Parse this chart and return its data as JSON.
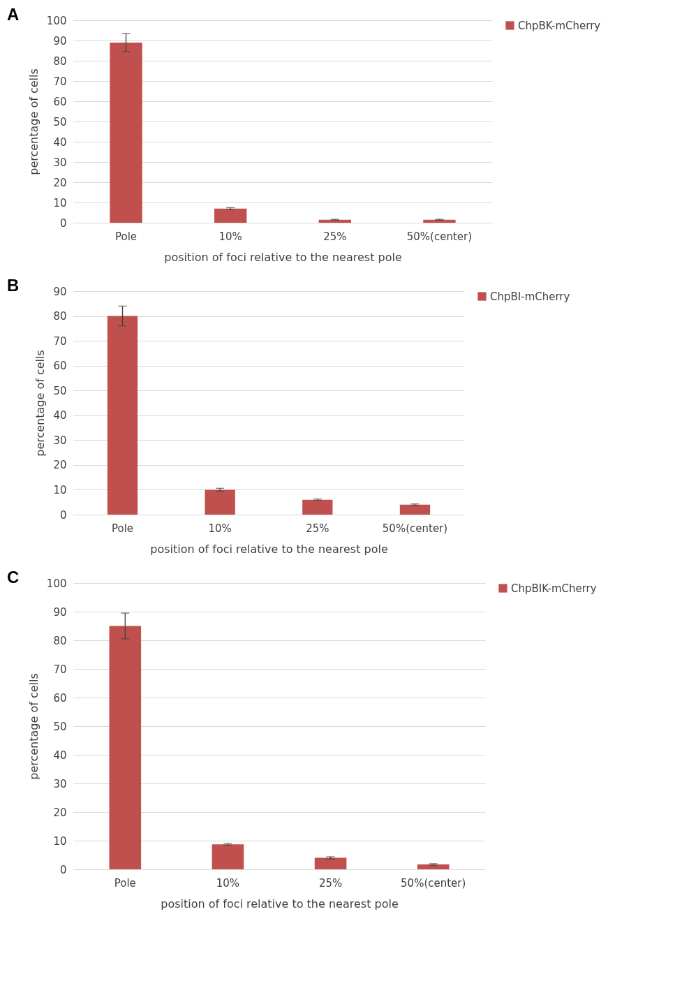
{
  "chart_data": [
    {
      "type": "bar",
      "title": "A",
      "xlabel": "position of foci relative to the nearest pole",
      "ylabel": "percentage of cells",
      "categories": [
        "Pole",
        "10%",
        "25%",
        "50%(center)"
      ],
      "series": [
        {
          "name": "ChpBK-mCherry",
          "color": "#c0504d",
          "values": [
            89,
            7,
            1.5,
            1.5
          ],
          "errors": [
            4.5,
            0.5,
            0.2,
            0.2
          ]
        }
      ],
      "ylim": [
        0,
        100
      ],
      "yticks": [
        0,
        10,
        20,
        30,
        40,
        50,
        60,
        70,
        80,
        90,
        100
      ],
      "grid": "y",
      "legend": "right"
    },
    {
      "type": "bar",
      "title": "B",
      "xlabel": "position of foci relative to the nearest pole",
      "ylabel": "percentage of cells",
      "categories": [
        "Pole",
        "10%",
        "25%",
        "50%(center)"
      ],
      "series": [
        {
          "name": "ChpBI-mCherry",
          "color": "#c0504d",
          "values": [
            80,
            10,
            6,
            4
          ],
          "errors": [
            4,
            0.6,
            0.3,
            0.3
          ]
        }
      ],
      "ylim": [
        0,
        90
      ],
      "yticks": [
        0,
        10,
        20,
        30,
        40,
        50,
        60,
        70,
        80,
        90
      ],
      "grid": "y",
      "legend": "right"
    },
    {
      "type": "bar",
      "title": "C",
      "xlabel": "position of foci relative to the nearest pole",
      "ylabel": "percentage of cells",
      "categories": [
        "Pole",
        "10%",
        "25%",
        "50%(center)"
      ],
      "series": [
        {
          "name": "ChpBIK-mCherry",
          "color": "#c0504d",
          "values": [
            85,
            8.7,
            4,
            1.7
          ],
          "errors": [
            4.5,
            0.3,
            0.4,
            0.3
          ]
        }
      ],
      "ylim": [
        0,
        100
      ],
      "yticks": [
        0,
        10,
        20,
        30,
        40,
        50,
        60,
        70,
        80,
        90,
        100
      ],
      "grid": "y",
      "legend": "right"
    }
  ]
}
